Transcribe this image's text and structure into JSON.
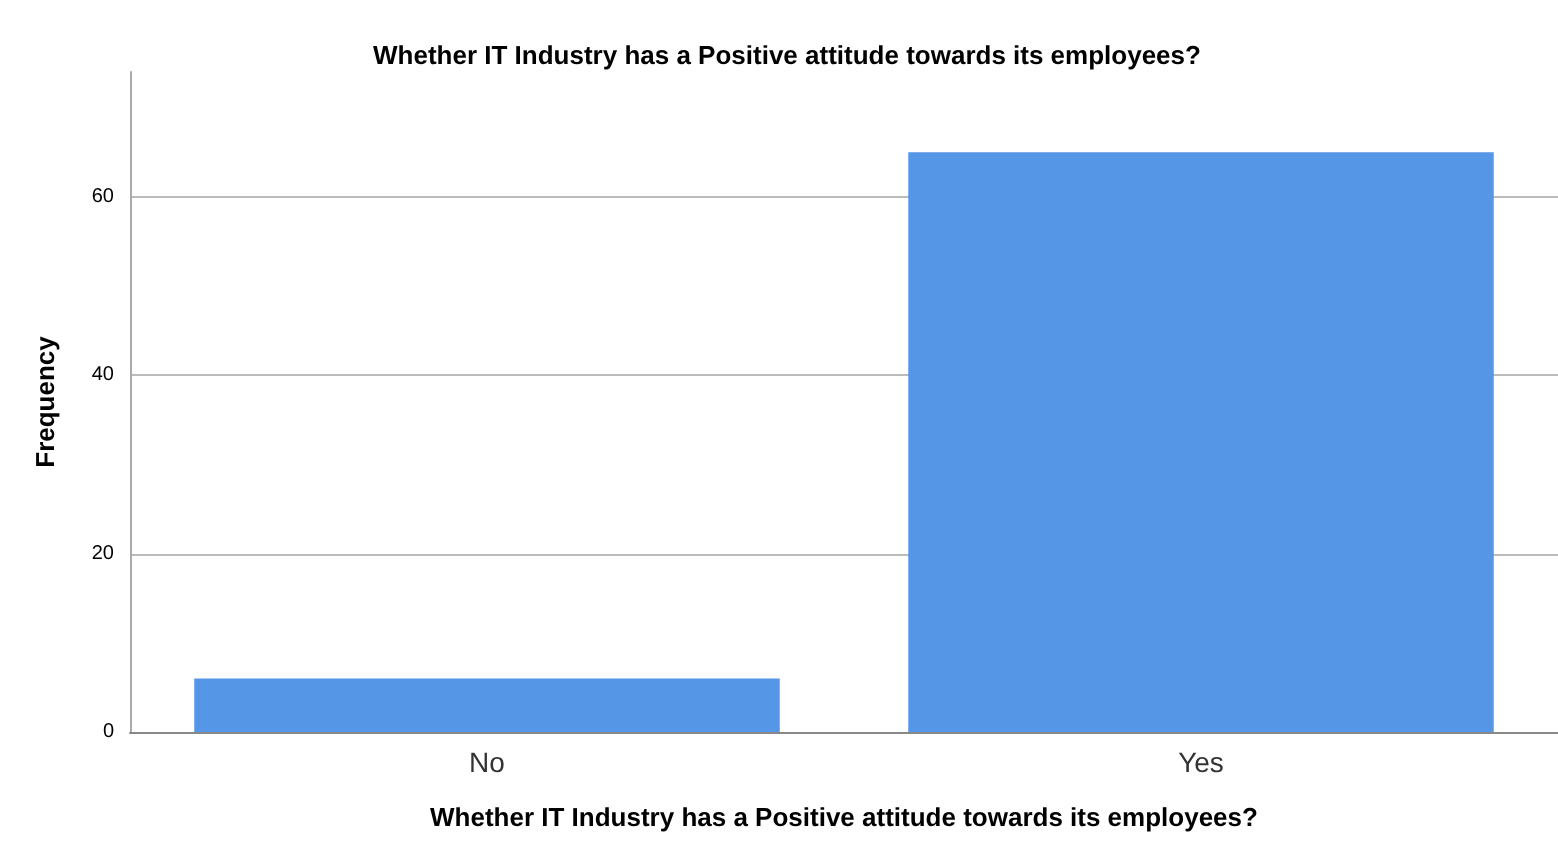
{
  "chart_data": {
    "type": "bar",
    "title": "Whether IT Industry has a Positive attitude towards its employees?",
    "xlabel": "Whether IT Industry has a Positive attitude towards its employees?",
    "ylabel": "Frequency",
    "categories": [
      "No",
      "Yes"
    ],
    "values": [
      6,
      65
    ],
    "color": "#5596e6",
    "ylim": [
      0,
      74
    ],
    "yticks": [
      0,
      20,
      40,
      60
    ],
    "grid": "y"
  }
}
